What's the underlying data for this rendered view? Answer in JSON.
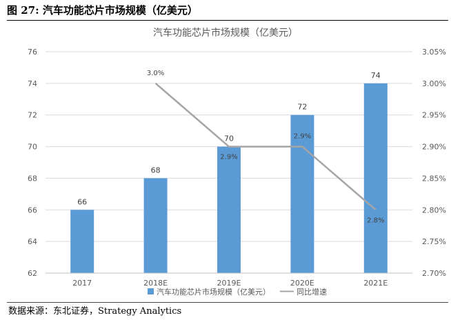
{
  "figure_title": "图  27:  汽车功能芯片市场规模（亿美元）",
  "source_note": "数据来源：东北证券，Strategy Analytics",
  "colors": {
    "bar": "#5b9bd5",
    "line": "#a5a5a5",
    "grid": "#d9d9d9",
    "axis_text": "#595959"
  },
  "chart_data": {
    "type": "bar",
    "title": "汽车功能芯片市场规模（亿美元）",
    "categories": [
      "2017",
      "2018E",
      "2019E",
      "2020E",
      "2021E"
    ],
    "series": [
      {
        "name": "汽车功能芯片市场规模（亿美元）",
        "type": "bar",
        "axis": "left",
        "values": [
          66,
          68,
          70,
          72,
          74
        ]
      },
      {
        "name": "同比增速",
        "type": "line",
        "axis": "right",
        "values": [
          null,
          3.0,
          2.9,
          2.9,
          2.8
        ],
        "labels": [
          "",
          "3.0%",
          "2.9%",
          "2.9%",
          "2.8%"
        ]
      }
    ],
    "ylim": [
      62,
      76
    ],
    "yticks": [
      "62",
      "64",
      "66",
      "68",
      "70",
      "72",
      "74",
      "76"
    ],
    "y2lim": [
      2.7,
      3.05
    ],
    "y2ticks": [
      "2.70%",
      "2.75%",
      "2.80%",
      "2.85%",
      "2.90%",
      "2.95%",
      "3.00%",
      "3.05%"
    ],
    "grid": true,
    "legend_position": "bottom"
  }
}
